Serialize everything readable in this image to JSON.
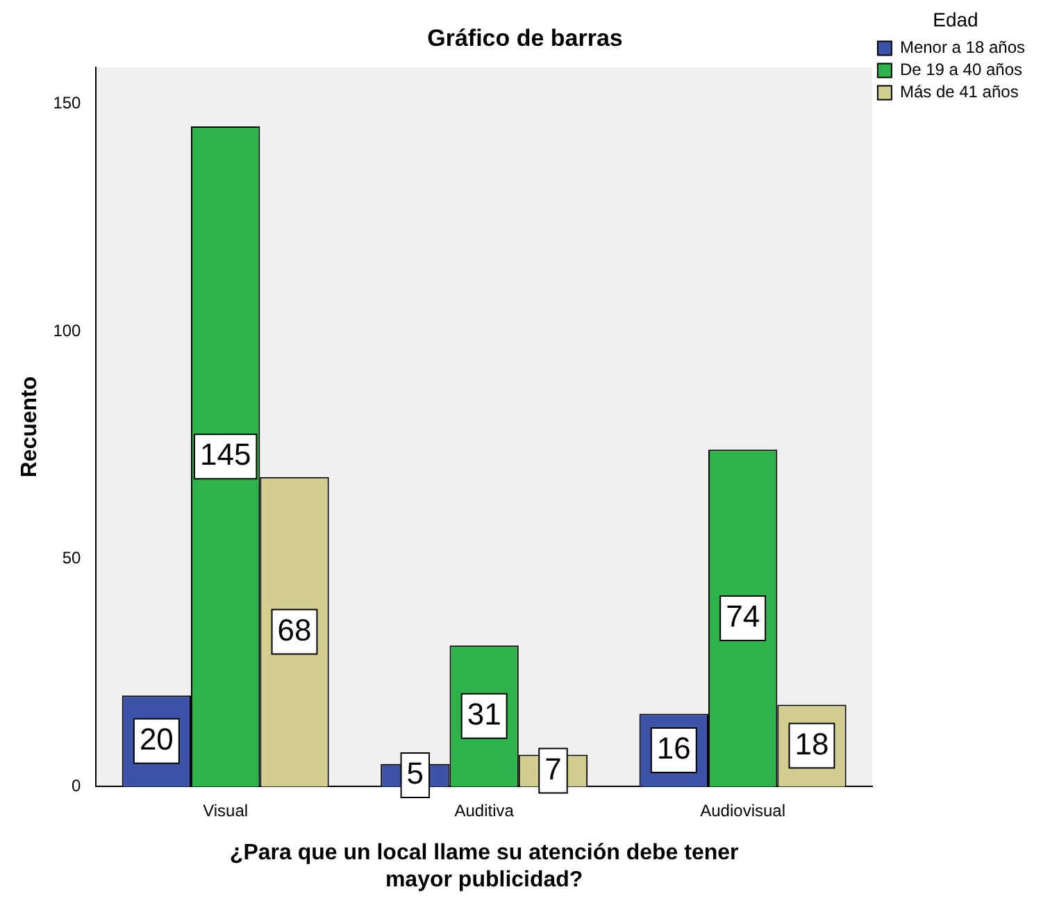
{
  "chart_data": {
    "type": "bar",
    "title": "Gráfico de barras",
    "xlabel": "¿Para que un local llame su atención debe tener mayor publicidad?",
    "ylabel": "Recuento",
    "legend_title": "Edad",
    "categories": [
      "Visual",
      "Auditiva",
      "Audiovisual"
    ],
    "series": [
      {
        "name": "Menor a 18 años",
        "color": "#3c54a8",
        "values": [
          20,
          5,
          16
        ]
      },
      {
        "name": "De 19 a 40 años",
        "color": "#2db34a",
        "values": [
          145,
          31,
          74
        ]
      },
      {
        "name": "Más de 41 años",
        "color": "#d3cd8f",
        "values": [
          68,
          7,
          18
        ]
      }
    ],
    "ylim": [
      0,
      158
    ],
    "yticks": [
      0,
      50,
      100,
      150
    ],
    "grid": false,
    "legend": "top right",
    "data_labels": true
  }
}
